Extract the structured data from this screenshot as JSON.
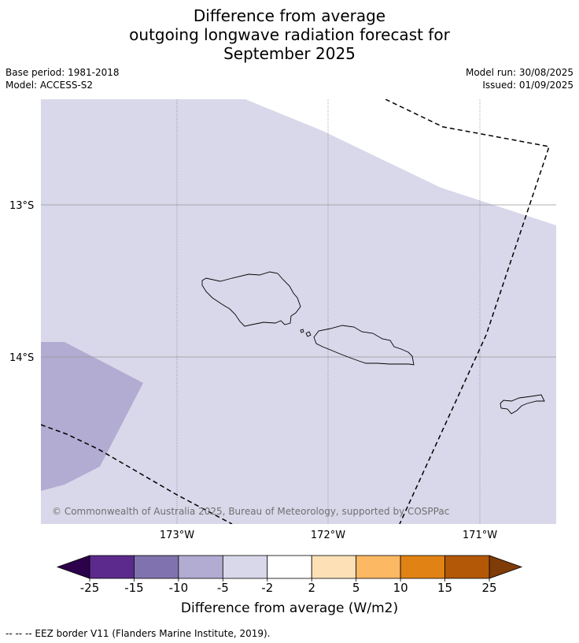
{
  "title": {
    "line1": "Difference from average",
    "line2": "outgoing longwave radiation forecast for",
    "line3": "September 2025"
  },
  "meta": {
    "base_period": "Base period: 1981-2018",
    "model": "Model: ACCESS-S2",
    "model_run": "Model run: 30/08/2025",
    "issued": "Issued: 01/09/2025"
  },
  "map": {
    "lat_labels": [
      "13°S",
      "14°S"
    ],
    "lon_labels": [
      "173°W",
      "172°W",
      "171°W"
    ],
    "credit": "© Commonwealth of Australia 2025, Bureau of Meteorology, supported by COSPPac",
    "colors": {
      "background_class": "#d8d8ea",
      "anomaly_class": "#b2abd2",
      "no_anomaly": "#ffffff",
      "eez_border": "#000000"
    }
  },
  "colorbar": {
    "ticks": [
      "-25",
      "-15",
      "-10",
      "-5",
      "-2",
      "2",
      "5",
      "10",
      "15",
      "25"
    ],
    "colors": [
      "#5c2a8c",
      "#8072ae",
      "#b2abd2",
      "#d8d8ea",
      "#ffffff",
      "#fee0b6",
      "#fdb863",
      "#e08214",
      "#b35806"
    ],
    "extend_low_color": "#2d004b",
    "extend_high_color": "#7f3b08",
    "label": "Difference from average (W/m2)"
  },
  "footnote": "--  --  -- EEZ border V11 (Flanders Marine Institute, 2019)."
}
